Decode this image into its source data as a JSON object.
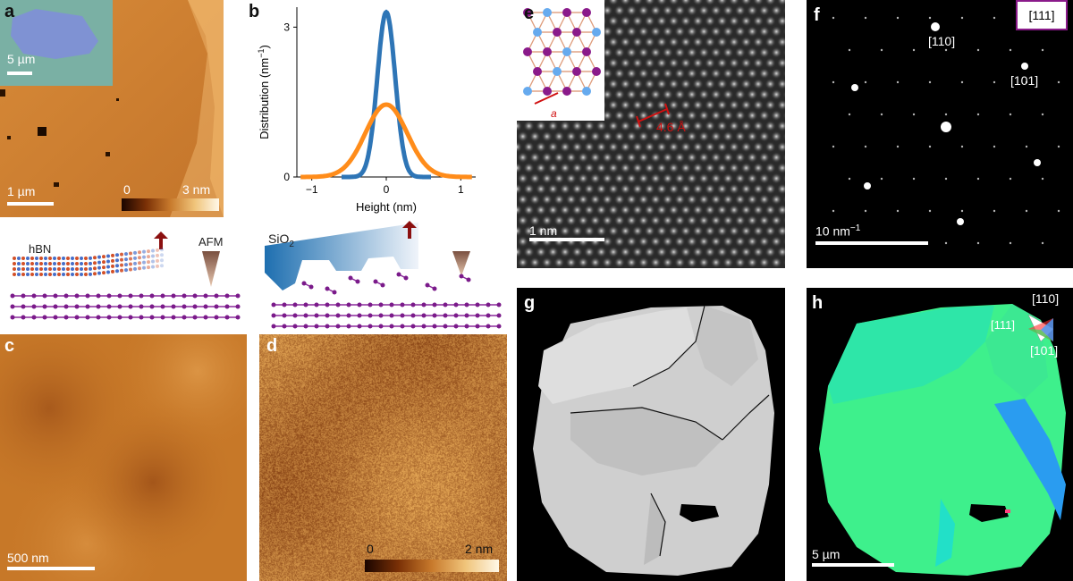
{
  "panels": {
    "a": {
      "label": "a",
      "inset_scale": "5 µm",
      "scale": "1 µm",
      "cb_min": "0",
      "cb_max": "3 nm"
    },
    "b": {
      "label": "b"
    },
    "c": {
      "label": "c",
      "scale": "500 nm"
    },
    "d": {
      "label": "d",
      "cb_min": "0",
      "cb_max": "2 nm"
    },
    "e": {
      "label": "e",
      "inset_a": "a",
      "spacing": "4.6 Å",
      "scale": "1 nm"
    },
    "f": {
      "label": "f",
      "zone": "[111]",
      "spot1": "[110]",
      "spot2": "[101]",
      "scale": "10 nm",
      "scale_sup": "−1"
    },
    "g": {
      "label": "g"
    },
    "h": {
      "label": "h",
      "tri_top": "[110]",
      "tri_left": "[111]",
      "tri_bottom": "[101]",
      "scale": "5 µm"
    }
  },
  "schematic": {
    "left_hbn": "hBN",
    "left_afm": "AFM",
    "right_sio2": "SiO",
    "right_sio2_sub": "2"
  },
  "chart_data": {
    "type": "line",
    "xlabel": "Height (nm)",
    "ylabel": "Distribution (nm",
    "ylabel_sup": "−1",
    "ylabel_close": ")",
    "xlim": [
      -1.2,
      1.2
    ],
    "ylim": [
      0,
      3.4
    ],
    "xticks": [
      -1,
      0,
      1
    ],
    "xtick_labels": [
      "−1",
      "0",
      "1"
    ],
    "yticks": [
      0,
      3
    ],
    "ytick_labels": [
      "0",
      "3"
    ],
    "series": [
      {
        "color": "#2e75b6",
        "mu": 0.0,
        "sigma": 0.12,
        "peak": 3.3,
        "xmin": -0.6,
        "xmax": 0.6
      },
      {
        "color": "#ff8c1a",
        "mu": 0.0,
        "sigma": 0.28,
        "peak": 1.45,
        "xmin": -1.15,
        "xmax": 1.15
      }
    ]
  }
}
